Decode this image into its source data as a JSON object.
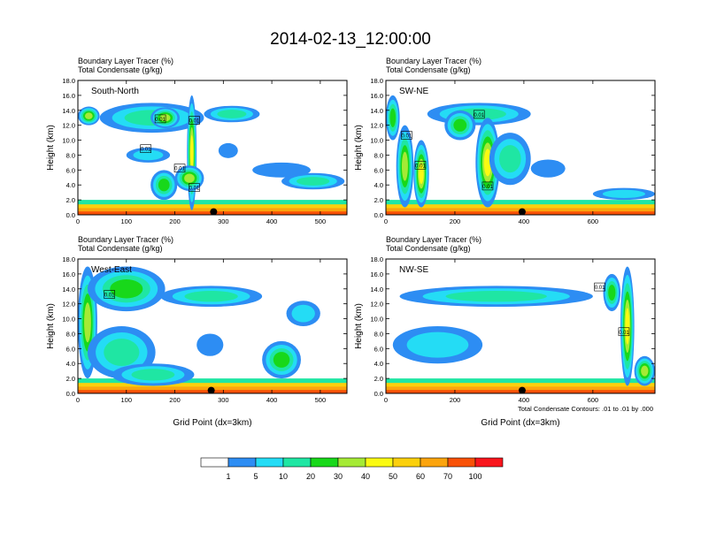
{
  "page": {
    "title": "2014-02-13_12:00:00",
    "contour_note": "Total Condensate Contours: .01 to .01 by .000"
  },
  "chart_data": {
    "type": "heatmap",
    "panel_variables": [
      "Boundary Layer Tracer   (%)",
      "Total Condensate   (g/kg)"
    ],
    "y_axis": {
      "label": "Height (km)",
      "ylim": [
        0,
        18
      ],
      "ticks": [
        "0.0",
        "2.0",
        "4.0",
        "6.0",
        "8.0",
        "10.0",
        "12.0",
        "14.0",
        "16.0",
        "18.0"
      ]
    },
    "x_axis_label": "Grid Point (dx=3km)",
    "colorbar": {
      "colors": [
        "#ffffff",
        "#2d8df3",
        "#24dcf5",
        "#1fe6a3",
        "#18d81a",
        "#a5ea35",
        "#fafa12",
        "#fbd00c",
        "#fba40d",
        "#f85107",
        "#f8151c"
      ],
      "labels": [
        "1",
        "5",
        "10",
        "20",
        "30",
        "40",
        "50",
        "60",
        "70",
        "100"
      ]
    },
    "contour_labels": "0.01",
    "panels": [
      {
        "name": "South-North",
        "xlim": [
          0,
          555
        ],
        "xticks": [
          "0",
          "100",
          "200",
          "300",
          "400",
          "500"
        ],
        "xtick_values": [
          0,
          100,
          200,
          300,
          400,
          500
        ],
        "marker_x": 280,
        "contour_label_points": [
          [
            170,
            12.8
          ],
          [
            240,
            12.6
          ],
          [
            140,
            8.8
          ],
          [
            210,
            6.2
          ],
          [
            240,
            3.6
          ]
        ],
        "bands": [
          {
            "x": [
              0,
              45
            ],
            "y": [
              12,
              14.5
            ],
            "level": 5
          },
          {
            "x": [
              45,
              260
            ],
            "y": [
              11,
              15
            ],
            "level": 3
          },
          {
            "x": [
              150,
              210
            ],
            "y": [
              11.6,
              14.4
            ],
            "level": 5
          },
          {
            "x": [
              260,
              375
            ],
            "y": [
              12.4,
              14.6
            ],
            "level": 3
          },
          {
            "x": [
              100,
              190
            ],
            "y": [
              7,
              9
            ],
            "level": 2
          },
          {
            "x": [
              290,
              330
            ],
            "y": [
              7.6,
              9.6
            ],
            "level": 1
          },
          {
            "x": [
              360,
              480
            ],
            "y": [
              5,
              7
            ],
            "level": 1
          },
          {
            "x": [
              420,
              550
            ],
            "y": [
              3.4,
              5.6
            ],
            "level": 3
          },
          {
            "x": [
              150,
              205
            ],
            "y": [
              2,
              6
            ],
            "level": 4
          },
          {
            "x": [
              225,
              245
            ],
            "y": [
              0.6,
              16
            ],
            "level": 6
          },
          {
            "x": [
              200,
              260
            ],
            "y": [
              3.2,
              6.6
            ],
            "level": 5
          }
        ]
      },
      {
        "name": "SW-NE",
        "xlim": [
          0,
          780
        ],
        "xticks": [
          "0",
          "200",
          "400",
          "600"
        ],
        "xtick_values": [
          0,
          200,
          400,
          600
        ],
        "marker_x": 395,
        "contour_label_points": [
          [
            270,
            13.4
          ],
          [
            60,
            10.6
          ],
          [
            100,
            6.6
          ],
          [
            295,
            3.8
          ]
        ],
        "bands": [
          {
            "x": [
              0,
              40
            ],
            "y": [
              10,
              16
            ],
            "level": 4
          },
          {
            "x": [
              30,
              80
            ],
            "y": [
              1,
              12
            ],
            "level": 5
          },
          {
            "x": [
              80,
              125
            ],
            "y": [
              1,
              10
            ],
            "level": 6
          },
          {
            "x": [
              120,
              420
            ],
            "y": [
              12,
              15
            ],
            "level": 3
          },
          {
            "x": [
              170,
              260
            ],
            "y": [
              10,
              14
            ],
            "level": 4
          },
          {
            "x": [
              260,
              330
            ],
            "y": [
              1,
              13
            ],
            "level": 6
          },
          {
            "x": [
              300,
              420
            ],
            "y": [
              4,
              11
            ],
            "level": 3
          },
          {
            "x": [
              420,
              520
            ],
            "y": [
              5,
              7.4
            ],
            "level": 1
          },
          {
            "x": [
              600,
              780
            ],
            "y": [
              2,
              3.6
            ],
            "level": 2
          }
        ]
      },
      {
        "name": "West-East",
        "xlim": [
          0,
          555
        ],
        "xticks": [
          "0",
          "100",
          "200",
          "300",
          "400",
          "500"
        ],
        "xtick_values": [
          0,
          100,
          200,
          300,
          400,
          500
        ],
        "marker_x": 275,
        "contour_label_points": [
          [
            65,
            13.2
          ]
        ],
        "bands": [
          {
            "x": [
              0,
              40
            ],
            "y": [
              2,
              17
            ],
            "level": 5
          },
          {
            "x": [
              20,
              180
            ],
            "y": [
              11,
              17
            ],
            "level": 4
          },
          {
            "x": [
              170,
              380
            ],
            "y": [
              11.6,
              14.4
            ],
            "level": 3
          },
          {
            "x": [
              20,
              160
            ],
            "y": [
              2,
              9
            ],
            "level": 3
          },
          {
            "x": [
              70,
              240
            ],
            "y": [
              1,
              4
            ],
            "level": 3
          },
          {
            "x": [
              245,
              300
            ],
            "y": [
              5,
              8
            ],
            "level": 1
          },
          {
            "x": [
              380,
              460
            ],
            "y": [
              2,
              7
            ],
            "level": 4
          },
          {
            "x": [
              430,
              500
            ],
            "y": [
              9,
              12.4
            ],
            "level": 2
          }
        ]
      },
      {
        "name": "NW-SE",
        "xlim": [
          0,
          780
        ],
        "xticks": [
          "0",
          "200",
          "400",
          "600"
        ],
        "xtick_values": [
          0,
          200,
          400,
          600
        ],
        "marker_x": 395,
        "contour_label_points": [
          [
            620,
            14.2
          ],
          [
            690,
            8.2
          ]
        ],
        "bands": [
          {
            "x": [
              40,
              600
            ],
            "y": [
              11.6,
              14.4
            ],
            "level": 3
          },
          {
            "x": [
              20,
              280
            ],
            "y": [
              4,
              9
            ],
            "level": 2
          },
          {
            "x": [
              630,
              680
            ],
            "y": [
              11,
              16
            ],
            "level": 4
          },
          {
            "x": [
              680,
              720
            ],
            "y": [
              1,
              17
            ],
            "level": 6
          },
          {
            "x": [
              720,
              780
            ],
            "y": [
              1,
              5
            ],
            "level": 5
          }
        ]
      }
    ]
  }
}
